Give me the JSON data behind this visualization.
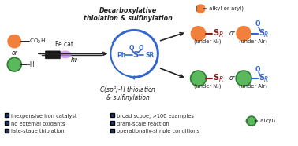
{
  "bg_color": "#ffffff",
  "orange_color": "#F0803C",
  "green_fc": "#5CB85C",
  "green_ec": "#2E7D32",
  "blue_color": "#3366CC",
  "bullet_color": "#1A3A6B",
  "red_color": "#8B1A1A",
  "text_color": "#222222",
  "bullet_left": [
    "inexpensive iron catalyst",
    "no external oxidants",
    "late-stage thiolation"
  ],
  "bullet_right": [
    "broad scope, >100 examples",
    "gram-scale reaction",
    "operationally-simple conditions"
  ],
  "under_n2": "(under N₂)",
  "under_air": "(under Air)",
  "fe_cat": "Fe cat.",
  "hv_text": "hν"
}
